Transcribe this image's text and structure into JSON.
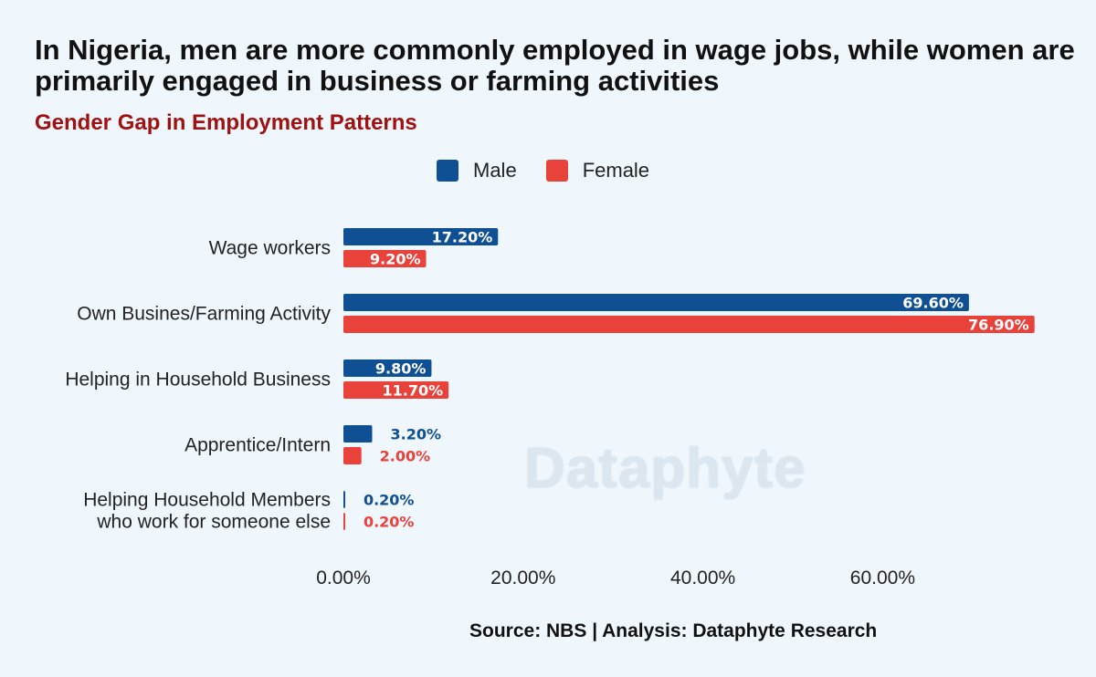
{
  "header": {
    "title": "In Nigeria, men are more commonly employed in wage jobs, while women are primarily engaged in business or farming activities",
    "subtitle": "Gender Gap in Employment Patterns"
  },
  "footer": {
    "source": "Source: NBS | Analysis: Dataphyte Research"
  },
  "watermark": "Dataphyte",
  "colors": {
    "male": "#0f4f93",
    "female": "#e8423a"
  },
  "chart_data": {
    "type": "bar",
    "orientation": "horizontal",
    "title": "In Nigeria, men are more commonly employed in wage jobs, while women are primarily engaged in business or farming activities",
    "subtitle": "Gender Gap in Employment Patterns",
    "categories": [
      [
        "Wage workers"
      ],
      [
        "Own Busines/Farming Activity"
      ],
      [
        "Helping in Household Business"
      ],
      [
        "Apprentice/Intern"
      ],
      [
        "Helping Household Members",
        "who work for someone else"
      ]
    ],
    "series": [
      {
        "name": "Male",
        "values": [
          17.2,
          69.6,
          9.8,
          3.2,
          0.2
        ],
        "labels": [
          "17.20%",
          "69.60%",
          "9.80%",
          "3.20%",
          "0.20%"
        ]
      },
      {
        "name": "Female",
        "values": [
          9.2,
          76.9,
          11.7,
          2.0,
          0.2
        ],
        "labels": [
          "9.20%",
          "76.90%",
          "11.70%",
          "2.00%",
          "0.20%"
        ]
      }
    ],
    "xticks": [
      0,
      20,
      40,
      60
    ],
    "xtick_labels": [
      "0.00%",
      "20.00%",
      "40.00%",
      "60.00%"
    ],
    "xlim": [
      0,
      80
    ],
    "grid": false,
    "legend_position": "top"
  }
}
